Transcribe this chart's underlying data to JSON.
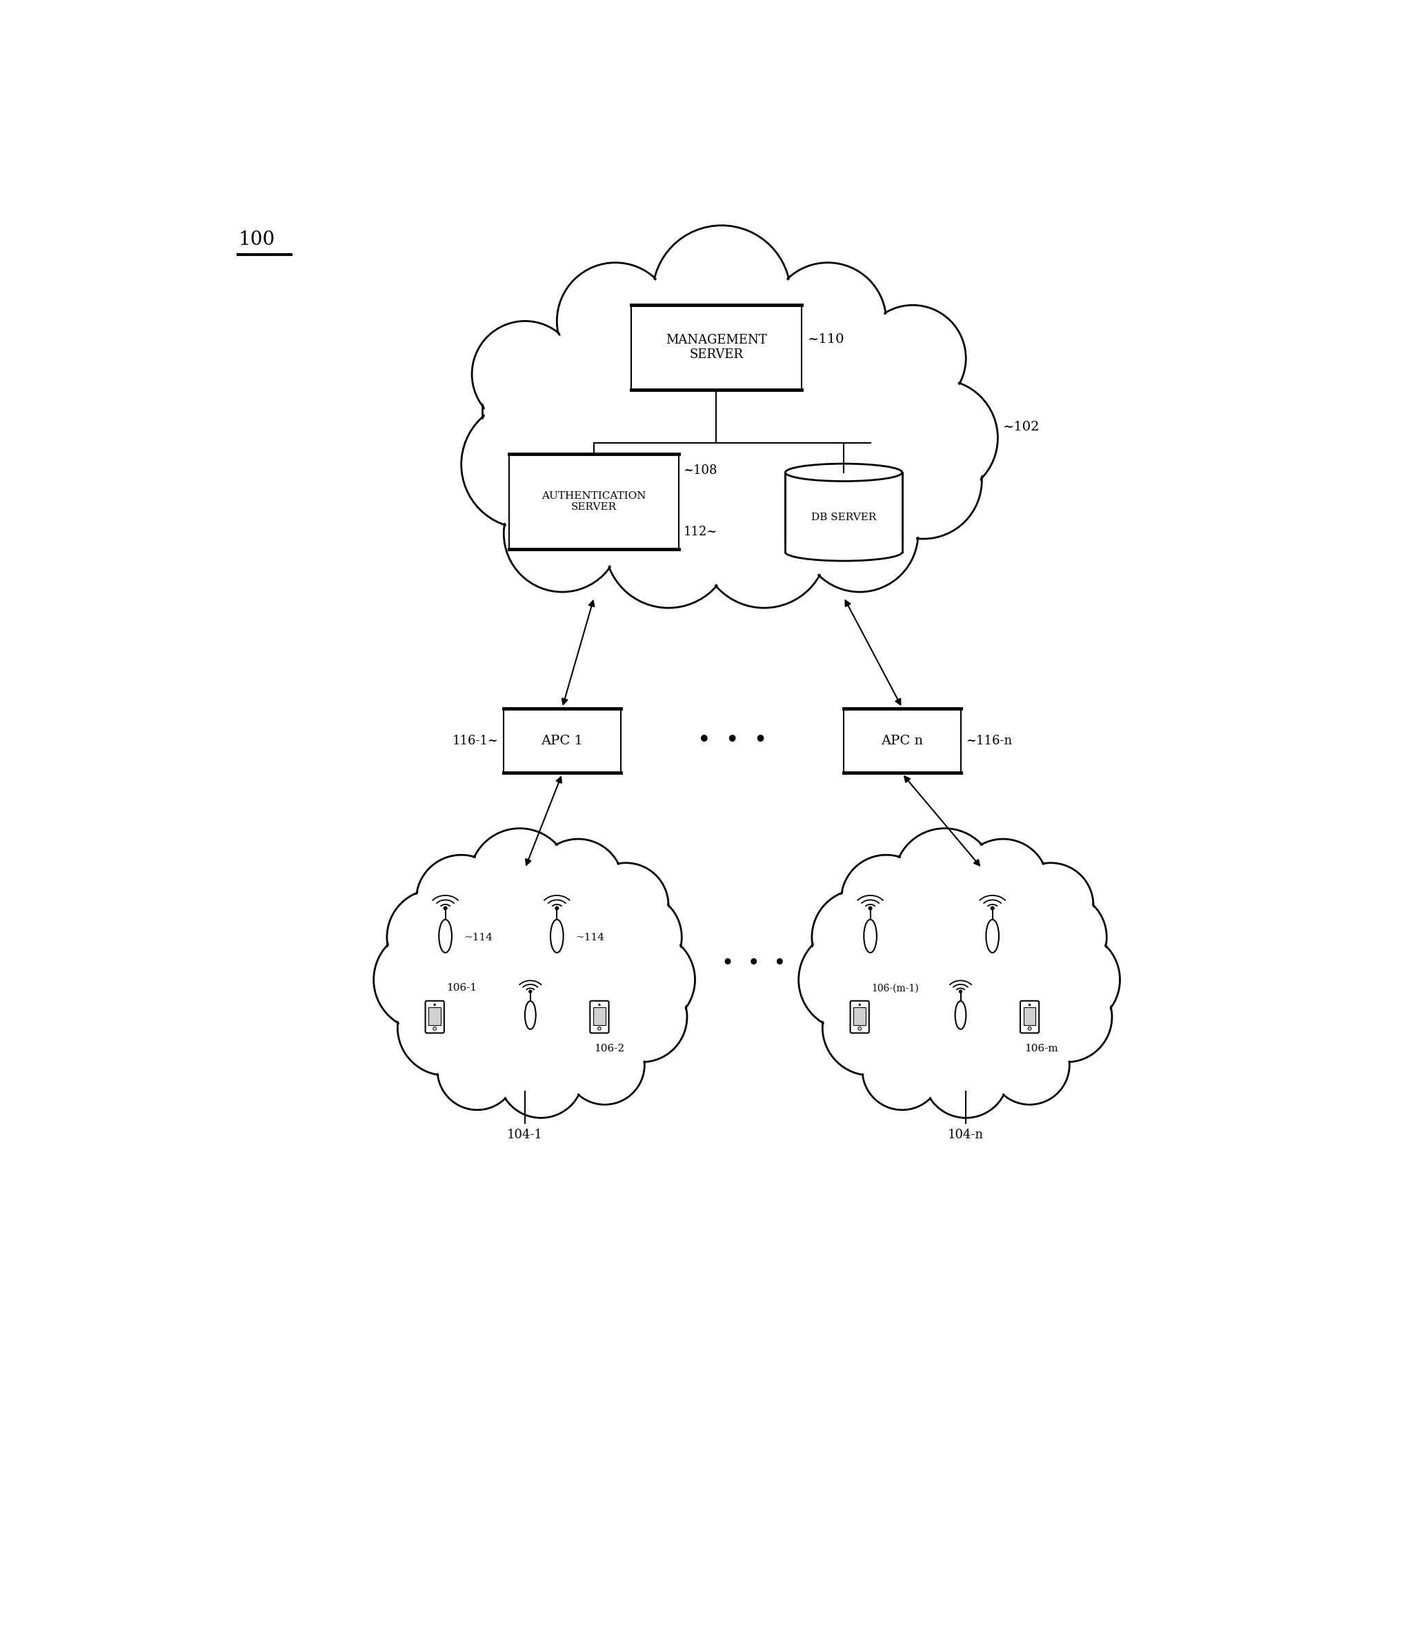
{
  "fig_width": 20.44,
  "fig_height": 23.83,
  "bg_color": "#ffffff",
  "line_color": "#000000",
  "label_100": "100",
  "label_102": "~102",
  "label_110": "~110",
  "label_108": "~108",
  "label_112": "112~",
  "label_116_1": "116-1~",
  "label_116_n": "~116-n",
  "label_104_1": "104-1",
  "label_104_n": "104-n",
  "label_106_1": "106-1",
  "label_106_2": "106-2",
  "label_106_m1": "106-(m-1)",
  "label_106_m": "106-m",
  "label_114a": "~114",
  "label_114b": "~114",
  "mgmt_text": "MANAGEMENT\nSERVER",
  "auth_text": "AUTHENTICATION\nSERVER",
  "db_text": "DB SERVER",
  "apc1_text": "APC 1",
  "apcn_text": "APC n",
  "dots": "•  •  •"
}
